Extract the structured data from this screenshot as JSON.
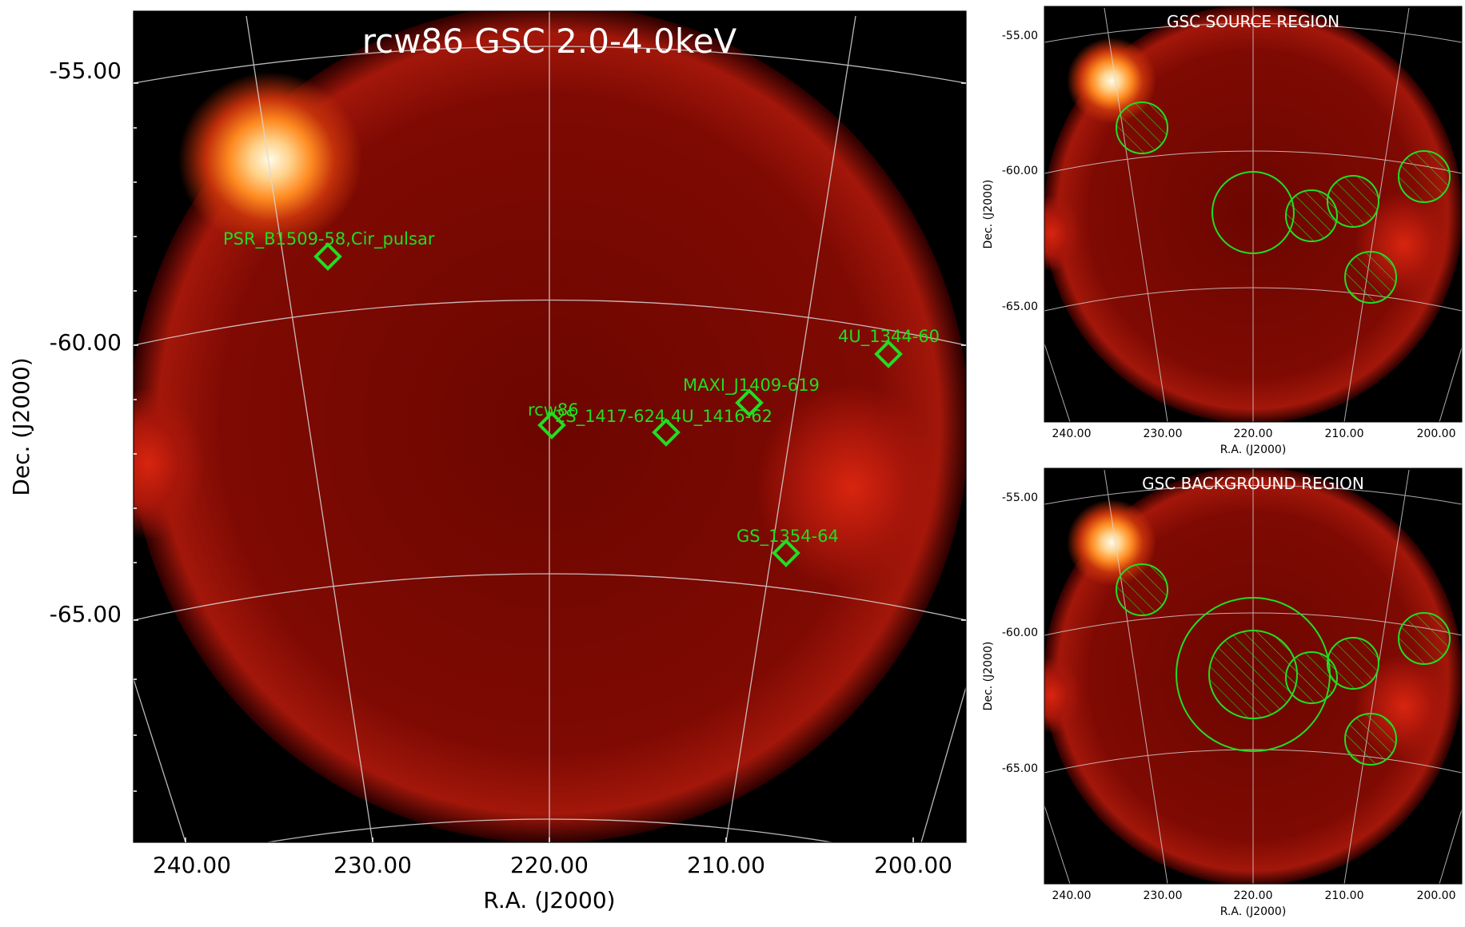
{
  "colors": {
    "background": "#000000",
    "map_center": "#6d0600",
    "map_edge": "#a8160a",
    "hot_core": "#fff6d8",
    "hot_mid": "#ff9a2a",
    "marker": "#22dd22",
    "grid": "#d9d9d9"
  },
  "main_panel": {
    "title": "rcw86 GSC 2.0-4.0keV",
    "xlabel": "R.A. (J2000)",
    "ylabel": "Dec. (J2000)",
    "x_ticks": [
      "240.00",
      "230.00",
      "220.00",
      "210.00",
      "200.00"
    ],
    "y_ticks": [
      "-55.00",
      "-60.00",
      "-65.00"
    ],
    "sources": [
      {
        "name": "PSR_B1509-58,Cir_pulsar",
        "ra": 232.3,
        "dec": -58.5
      },
      {
        "name": "4U_1344-60",
        "ra": 201.3,
        "dec": -60.2
      },
      {
        "name": "MAXI_J1409-619",
        "ra": 208.7,
        "dec": -61.1
      },
      {
        "name": "rcw86",
        "ra": 220.0,
        "dec": -61.5
      },
      {
        "name": "2S_1417-624,4U_1416-62",
        "ra": 213.4,
        "dec": -61.8
      },
      {
        "name": "GS_1354-64",
        "ra": 206.8,
        "dec": -63.9
      }
    ]
  },
  "source_panel": {
    "title": "GSC SOURCE REGION",
    "xlabel": "R.A. (J2000)",
    "ylabel": "Dec. (J2000)",
    "x_ticks": [
      "240.00",
      "230.00",
      "220.00",
      "210.00",
      "200.00"
    ],
    "y_ticks": [
      "-55.00",
      "-60.00",
      "-65.00"
    ]
  },
  "background_panel": {
    "title": "GSC BACKGROUND REGION",
    "xlabel": "R.A. (J2000)",
    "ylabel": "Dec. (J2000)",
    "x_ticks": [
      "240.00",
      "230.00",
      "220.00",
      "210.00",
      "200.00"
    ],
    "y_ticks": [
      "-55.00",
      "-60.00",
      "-65.00"
    ]
  }
}
